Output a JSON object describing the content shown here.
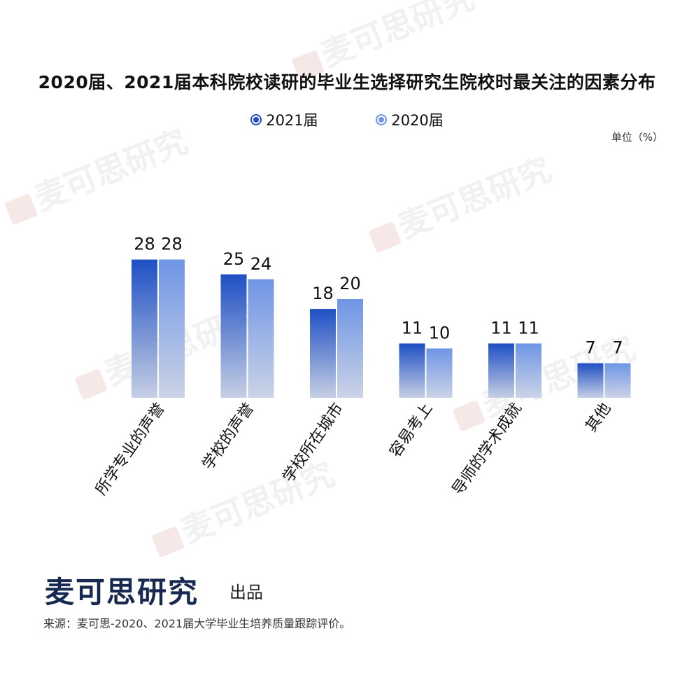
{
  "title": "2020届、2021届本科院校读研的毕业生选择研究生院校时最关注的因素分布",
  "legend": {
    "series_2021": "2021届",
    "series_2020": "2020届"
  },
  "unit": "单位（%）",
  "colors": {
    "series_2021": "#1e4fc4",
    "series_2020": "#6f95e6",
    "title": "#111111",
    "brand": "#17294f"
  },
  "chart_data": {
    "type": "bar",
    "title": "2020届、2021届本科院校读研的毕业生选择研究生院校时最关注的因素分布",
    "categories": [
      "所学专业的声誉",
      "学校的声誉",
      "学校所在城市",
      "容易考上",
      "导师的学术成就",
      "其他"
    ],
    "series": [
      {
        "name": "2021届",
        "values": [
          28,
          25,
          18,
          11,
          11,
          7
        ]
      },
      {
        "name": "2020届",
        "values": [
          28,
          24,
          20,
          10,
          11,
          7
        ]
      }
    ],
    "ylim": [
      0,
      30
    ],
    "xlabel": "",
    "ylabel": "单位（%）",
    "grid": false,
    "legend_position": "top-center"
  },
  "watermark": "麦可思研究",
  "footer": {
    "brand": "麦可思研究",
    "produced": "出品",
    "source": "来源：麦可思-2020、2021届大学毕业生培养质量跟踪评价。"
  }
}
